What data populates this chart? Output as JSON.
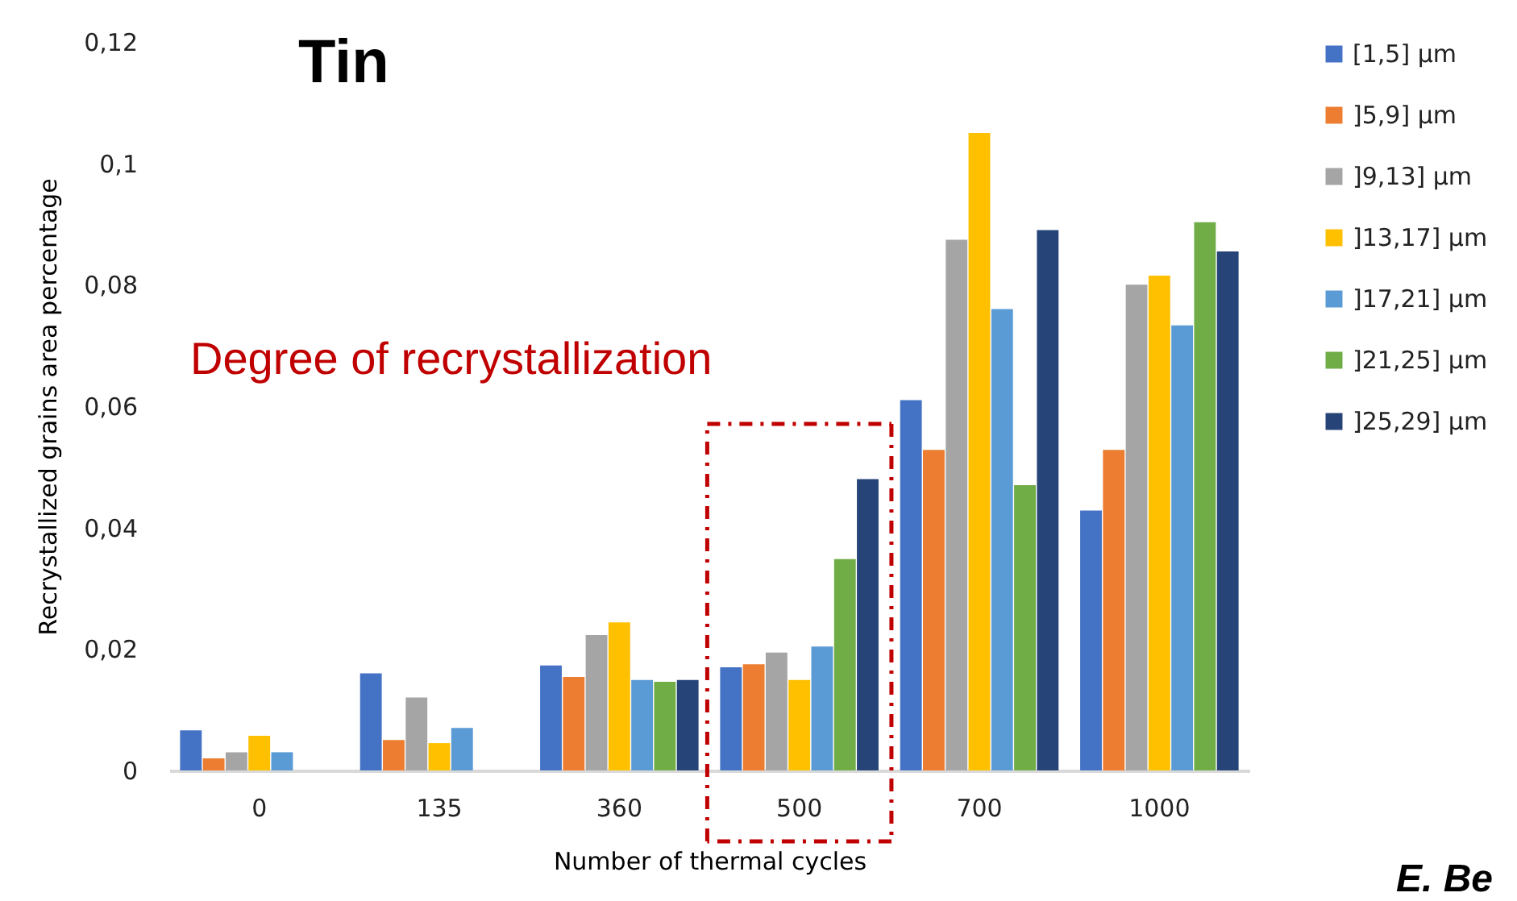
{
  "chart_data": {
    "type": "bar",
    "title": "Tin",
    "xlabel": "Number of thermal cycles",
    "ylabel": "Recrystallized grains area percentage",
    "annotations": [
      "Degree of recrystallization",
      "E. Be"
    ],
    "categories": [
      "0",
      "135",
      "360",
      "500",
      "700",
      "1000"
    ],
    "series": [
      {
        "name": "[1,5] µm",
        "color": "#4472c4",
        "values": [
          0.0066,
          0.016,
          0.0173,
          0.017,
          0.061,
          0.0428
        ]
      },
      {
        "name": "]5,9] µm",
        "color": "#ed7d31",
        "values": [
          0.002,
          0.005,
          0.0154,
          0.0175,
          0.0528,
          0.0528
        ]
      },
      {
        "name": "]9,13] µm",
        "color": "#a5a5a5",
        "values": [
          0.003,
          0.012,
          0.0223,
          0.0194,
          0.0874,
          0.08
        ]
      },
      {
        "name": "]13,17] µm",
        "color": "#ffc000",
        "values": [
          0.0057,
          0.0045,
          0.0244,
          0.0149,
          0.105,
          0.0815
        ]
      },
      {
        "name": "]17,21] µm",
        "color": "#5b9bd5",
        "values": [
          0.003,
          0.007,
          0.0149,
          0.0204,
          0.076,
          0.0733
        ]
      },
      {
        "name": "]21,25] µm",
        "color": "#70ad47",
        "values": [
          null,
          null,
          0.0146,
          0.0348,
          0.047,
          0.0903
        ]
      },
      {
        "name": "]25,29] µm",
        "color": "#264478",
        "values": [
          null,
          null,
          0.0149,
          0.048,
          0.089,
          0.0855
        ]
      }
    ],
    "ylim": [
      0,
      0.12
    ],
    "yticks": [
      {
        "value": 0,
        "label": "0"
      },
      {
        "value": 0.02,
        "label": "0,02"
      },
      {
        "value": 0.04,
        "label": "0,04"
      },
      {
        "value": 0.06,
        "label": "0,06"
      },
      {
        "value": 0.08,
        "label": "0,08"
      },
      {
        "value": 0.1,
        "label": "0,1"
      },
      {
        "value": 0.12,
        "label": "0,12"
      }
    ],
    "grid": false,
    "legend": "right"
  }
}
